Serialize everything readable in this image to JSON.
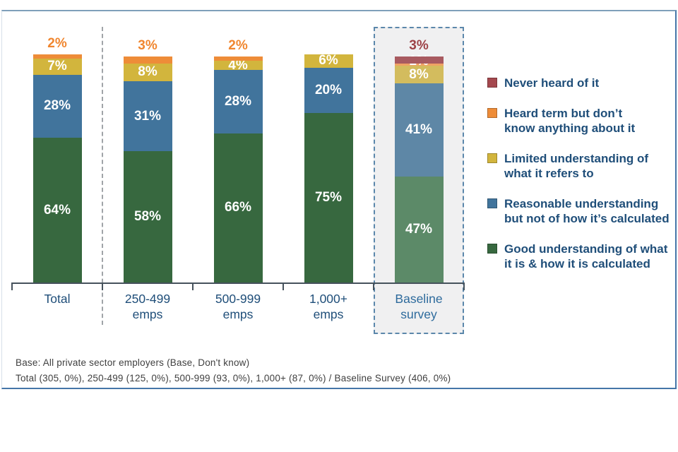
{
  "chart_data": {
    "type": "bar",
    "stacked": true,
    "unit": "%",
    "ylim": [
      0,
      100
    ],
    "grid": false,
    "legend_position": "right",
    "categories": [
      "Total",
      "250-499 emps",
      "500-999 emps",
      "1,000+ emps",
      "Baseline survey"
    ],
    "series": [
      {
        "name": "Good understanding of what it is & how it is calculated",
        "values": [
          64,
          58,
          66,
          75,
          47
        ]
      },
      {
        "name": "Reasonable understanding but not of how it's calculated",
        "values": [
          28,
          31,
          28,
          20,
          41
        ]
      },
      {
        "name": "Limited understanding of what it refers to",
        "values": [
          7,
          8,
          4,
          6,
          8
        ]
      },
      {
        "name": "Heard term but don't know anything about it",
        "values": [
          2,
          3,
          2,
          0,
          1
        ]
      },
      {
        "name": "Never heard of it",
        "values": [
          0,
          0,
          0,
          0,
          3
        ]
      }
    ]
  },
  "colors": {
    "green": "#37683f",
    "blue": "#41749c",
    "yellow": "#d2b53d",
    "orange": "#ee8c38",
    "maroon": "#a4484e",
    "muted_green": "#5c8a68",
    "muted_blue": "#5e87a6",
    "muted_yellow": "#d3bc5e",
    "muted_orange": "#efa264",
    "muted_maroon": "#a85a60",
    "orange_label_text": "#f0862f",
    "maroon_label_text": "#9d4247",
    "category_text": "#1f4e79",
    "baseline_category_text": "#2d6a9c"
  },
  "render": {
    "bars": [
      {
        "category_lines": [
          "Total"
        ],
        "category_color": "#1f4e79",
        "above_label": {
          "text": "2%",
          "color": "#f0862f"
        },
        "segments": [
          {
            "value": 64,
            "color": "#37683f",
            "label": "64%"
          },
          {
            "value": 28,
            "color": "#41749c",
            "label": "28%"
          },
          {
            "value": 7,
            "color": "#d2b53d",
            "label": "7%"
          },
          {
            "value": 2,
            "color": "#ee8c38",
            "label": null
          }
        ]
      },
      {
        "category_lines": [
          "250-499",
          "emps"
        ],
        "category_color": "#1f4e79",
        "above_label": {
          "text": "3%",
          "color": "#f0862f"
        },
        "segments": [
          {
            "value": 58,
            "color": "#37683f",
            "label": "58%"
          },
          {
            "value": 31,
            "color": "#41749c",
            "label": "31%"
          },
          {
            "value": 8,
            "color": "#d2b53d",
            "label": "8%"
          },
          {
            "value": 3,
            "color": "#ee8c38",
            "label": null
          }
        ]
      },
      {
        "category_lines": [
          "500-999",
          "emps"
        ],
        "category_color": "#1f4e79",
        "above_label": {
          "text": "2%",
          "color": "#f0862f"
        },
        "segments": [
          {
            "value": 66,
            "color": "#37683f",
            "label": "66%"
          },
          {
            "value": 28,
            "color": "#41749c",
            "label": "28%"
          },
          {
            "value": 4,
            "color": "#d2b53d",
            "label": "4%"
          },
          {
            "value": 2,
            "color": "#ee8c38",
            "label": null
          }
        ]
      },
      {
        "category_lines": [
          "1,000+",
          "emps"
        ],
        "category_color": "#1f4e79",
        "above_label": null,
        "segments": [
          {
            "value": 75,
            "color": "#37683f",
            "label": "75%"
          },
          {
            "value": 20,
            "color": "#41749c",
            "label": "20%"
          },
          {
            "value": 6,
            "color": "#d2b53d",
            "label": "6%"
          }
        ]
      },
      {
        "category_lines": [
          "Baseline",
          "survey"
        ],
        "category_color": "#2d6a9c",
        "above_label": {
          "text": "3%",
          "color": "#9d4247"
        },
        "segments": [
          {
            "value": 47,
            "color": "#5c8a68",
            "label": "47%"
          },
          {
            "value": 41,
            "color": "#5e87a6",
            "label": "41%"
          },
          {
            "value": 8,
            "color": "#d3bc5e",
            "label": "8%"
          },
          {
            "value": 1,
            "color": "#efa264",
            "label": "1%",
            "label_dy": -4
          },
          {
            "value": 3,
            "color": "#a85a60",
            "label": null
          }
        ]
      }
    ]
  },
  "legend": {
    "items": [
      {
        "name": "never-heard",
        "color": "#a4484e",
        "lines": [
          "Never heard of it"
        ]
      },
      {
        "name": "heard-term",
        "color": "#ee8c38",
        "lines": [
          "Heard term but don’t",
          "know anything about it"
        ]
      },
      {
        "name": "limited-understanding",
        "color": "#d2b53d",
        "lines": [
          "Limited understanding of",
          "what it refers to"
        ]
      },
      {
        "name": "reasonable-understanding",
        "color": "#41749c",
        "lines": [
          "Reasonable understanding",
          "but not of how it’s calculated"
        ]
      },
      {
        "name": "good-understanding",
        "color": "#37683f",
        "lines": [
          "Good understanding of what",
          "it is & how it is calculated"
        ]
      }
    ]
  },
  "footnote": {
    "line1": "Base: All private sector employers (Base, Don't know)",
    "line2": "Total (305, 0%), 250-499 (125, 0%), 500-999 (93, 0%), 1,000+ (87, 0%) / Baseline Survey (406, 0%)"
  }
}
